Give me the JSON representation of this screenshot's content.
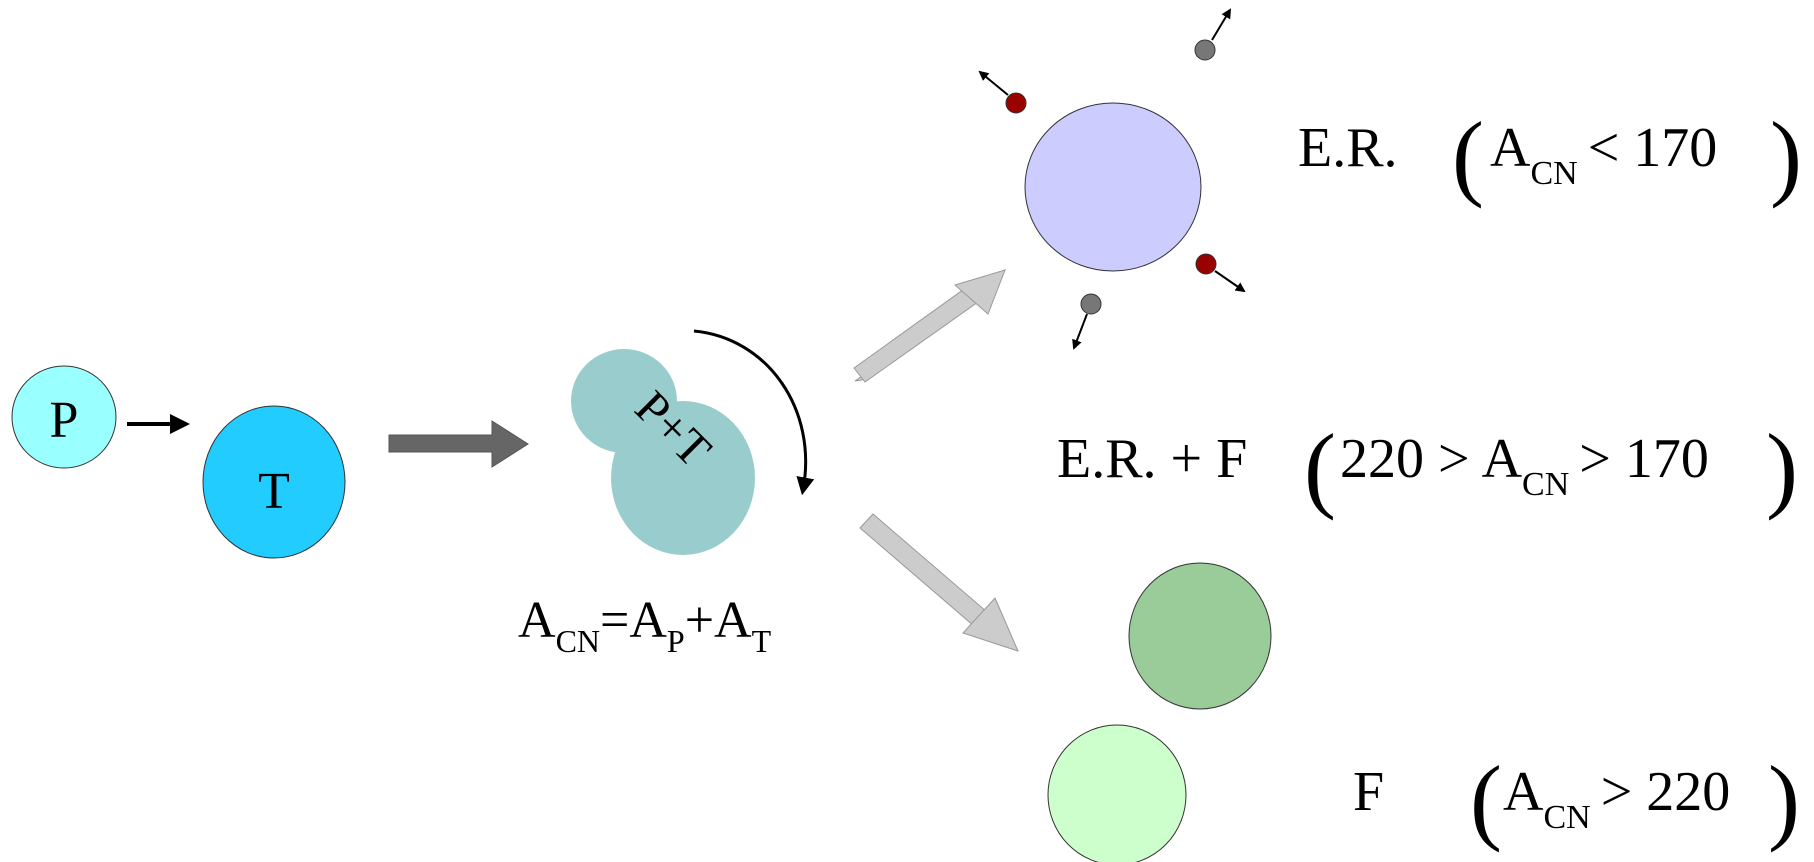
{
  "nuclei": {
    "projectile": {
      "label": "P",
      "color": "#99FFFF"
    },
    "target": {
      "label": "T",
      "color": "#22CCFF"
    },
    "compound": {
      "label": "P+T",
      "color": "#99CCCC"
    },
    "er_residue": {
      "color": "#CCCCFF"
    },
    "fragment_dark": {
      "color": "#99CC99"
    },
    "fragment_light": {
      "color": "#CCFFCC"
    },
    "particle_red": {
      "color": "#990000"
    },
    "particle_gray": {
      "color": "#777777"
    }
  },
  "formula": {
    "A": "A",
    "CN": "CN",
    "eq": "=",
    "P": "P",
    "plus": "+",
    "T": "T"
  },
  "channels": {
    "er": {
      "name": "E.R.",
      "A": "A",
      "sub": "CN",
      "condition": "< 170"
    },
    "er_f": {
      "name": "E.R. + F",
      "left": "220 >",
      "A": "A",
      "sub": "CN",
      "right": "> 170"
    },
    "f": {
      "name": "F",
      "A": "A",
      "sub": "CN",
      "condition": "> 220"
    }
  },
  "colors": {
    "arrow_dark": "#666666",
    "arrow_light": "#CCCCCC",
    "outline": "#333333"
  }
}
